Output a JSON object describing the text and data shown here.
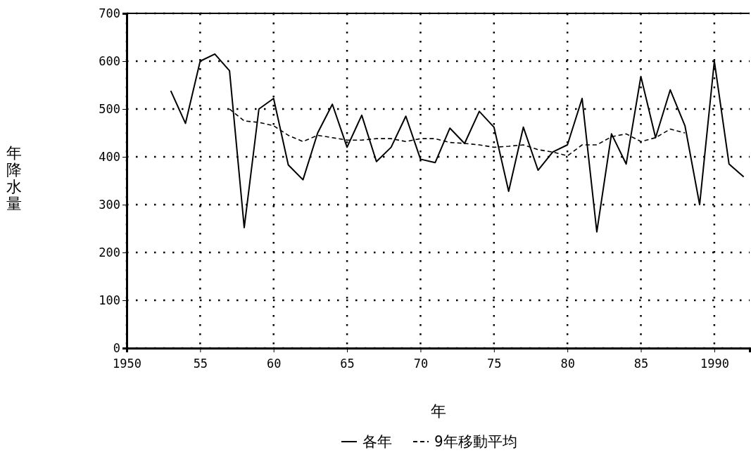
{
  "chart_data": {
    "type": "line",
    "xlabel": "年",
    "ylabel": "年降水量",
    "xlim": [
      1950,
      1992.4
    ],
    "xticks": [
      {
        "value": 1950,
        "label": "1950"
      },
      {
        "value": 1955,
        "label": "55"
      },
      {
        "value": 1960,
        "label": "60"
      },
      {
        "value": 1965,
        "label": "65"
      },
      {
        "value": 1970,
        "label": "70"
      },
      {
        "value": 1975,
        "label": "75"
      },
      {
        "value": 1980,
        "label": "80"
      },
      {
        "value": 1985,
        "label": "85"
      },
      {
        "value": 1990,
        "label": "1990"
      }
    ],
    "ylim": [
      0,
      700
    ],
    "yticks": [
      0,
      100,
      200,
      300,
      400,
      500,
      600,
      700
    ],
    "grid": true,
    "legend": "bottom",
    "series": [
      {
        "name": "各年",
        "color": "#000000",
        "line_style": "solid",
        "x": [
          1953,
          1954,
          1955,
          1956,
          1957,
          1958,
          1959,
          1960,
          1961,
          1962,
          1963,
          1964,
          1965,
          1966,
          1967,
          1968,
          1969,
          1970,
          1971,
          1972,
          1973,
          1974,
          1975,
          1976,
          1977,
          1978,
          1979,
          1980,
          1981,
          1982,
          1983,
          1984,
          1985,
          1986,
          1987,
          1988,
          1989,
          1990,
          1991,
          1992
        ],
        "values": [
          538,
          470,
          600,
          615,
          580,
          252,
          500,
          522,
          383,
          352,
          450,
          510,
          420,
          487,
          390,
          420,
          485,
          395,
          388,
          460,
          428,
          495,
          462,
          328,
          462,
          372,
          410,
          425,
          522,
          243,
          448,
          385,
          568,
          440,
          540,
          465,
          300,
          600,
          385,
          358
        ]
      },
      {
        "name": "9年移動平均",
        "color": "#000000",
        "line_style": "dashed",
        "x": [
          1957,
          1958,
          1959,
          1960,
          1961,
          1962,
          1963,
          1964,
          1965,
          1966,
          1967,
          1968,
          1969,
          1970,
          1971,
          1972,
          1973,
          1974,
          1975,
          1976,
          1977,
          1978,
          1979,
          1980,
          1981,
          1982,
          1983,
          1984,
          1985,
          1986,
          1987,
          1988
        ],
        "values": [
          500,
          475,
          472,
          465,
          445,
          432,
          445,
          440,
          435,
          435,
          438,
          438,
          432,
          438,
          438,
          430,
          428,
          425,
          420,
          422,
          425,
          415,
          410,
          402,
          425,
          425,
          442,
          448,
          432,
          440,
          458,
          450
        ]
      }
    ]
  }
}
